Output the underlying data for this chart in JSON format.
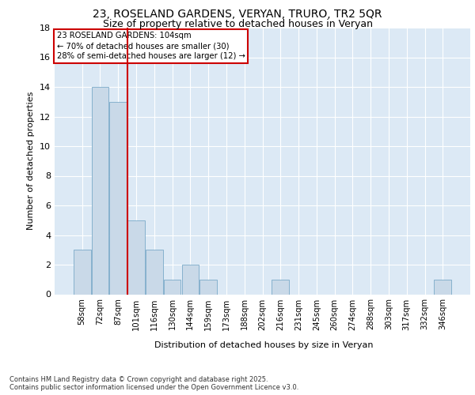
{
  "title_line1": "23, ROSELAND GARDENS, VERYAN, TRURO, TR2 5QR",
  "title_line2": "Size of property relative to detached houses in Veryan",
  "xlabel": "Distribution of detached houses by size in Veryan",
  "ylabel": "Number of detached properties",
  "bar_labels": [
    "58sqm",
    "72sqm",
    "87sqm",
    "101sqm",
    "116sqm",
    "130sqm",
    "144sqm",
    "159sqm",
    "173sqm",
    "188sqm",
    "202sqm",
    "216sqm",
    "231sqm",
    "245sqm",
    "260sqm",
    "274sqm",
    "288sqm",
    "303sqm",
    "317sqm",
    "332sqm",
    "346sqm"
  ],
  "bar_values": [
    3,
    14,
    13,
    5,
    3,
    1,
    2,
    1,
    0,
    0,
    0,
    1,
    0,
    0,
    0,
    0,
    0,
    0,
    0,
    0,
    1
  ],
  "bar_color": "#c9d9e8",
  "bar_edgecolor": "#7aaac8",
  "bg_color": "#dce9f5",
  "grid_color": "#ffffff",
  "vline_x_index": 3,
  "vline_color": "#cc0000",
  "annotation_text": "23 ROSELAND GARDENS: 104sqm\n← 70% of detached houses are smaller (30)\n28% of semi-detached houses are larger (12) →",
  "annotation_box_color": "#ffffff",
  "annotation_box_edgecolor": "#cc0000",
  "ylim": [
    0,
    18
  ],
  "yticks": [
    0,
    2,
    4,
    6,
    8,
    10,
    12,
    14,
    16,
    18
  ],
  "footer_line1": "Contains HM Land Registry data © Crown copyright and database right 2025.",
  "footer_line2": "Contains public sector information licensed under the Open Government Licence v3.0."
}
